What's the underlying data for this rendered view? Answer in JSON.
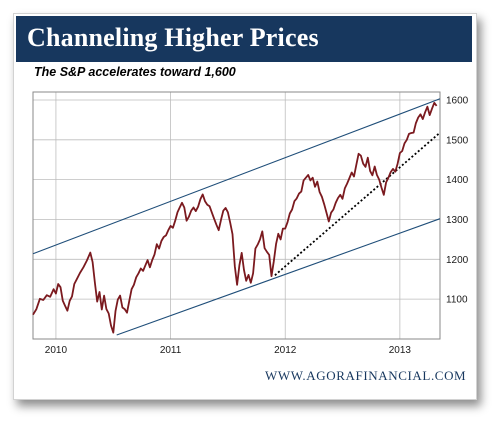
{
  "header": {
    "title": "Channeling Higher Prices",
    "subtitle": "The S&P accelerates toward 1,600"
  },
  "footer": {
    "source": "WWW.AGORAFINANCIAL.COM"
  },
  "colors": {
    "banner": "#17375e",
    "series": "#7b1a1f",
    "channel": "#1f4e79",
    "trend": "#000000"
  },
  "chart_data": {
    "type": "line",
    "title": "Channeling Higher Prices",
    "subtitle": "The S&P accelerates toward 1,600",
    "xlabel": "",
    "ylabel": "",
    "xlim": [
      2009.8,
      2013.35
    ],
    "ylim": [
      1000,
      1620
    ],
    "x_ticks": [
      2010,
      2011,
      2012,
      2013
    ],
    "x_tick_labels": [
      "2010",
      "2011",
      "2012",
      "2013"
    ],
    "y_ticks": [
      1100,
      1200,
      1300,
      1400,
      1500,
      1600
    ],
    "y_tick_labels": [
      "1100",
      "1200",
      "1300",
      "1400",
      "1500",
      "1600"
    ],
    "grid": true,
    "series": [
      {
        "values": [
          [
            2009.8,
            1061
          ],
          [
            2009.83,
            1075
          ],
          [
            2009.86,
            1101
          ],
          [
            2009.89,
            1098
          ],
          [
            2009.92,
            1110
          ],
          [
            2009.95,
            1106
          ],
          [
            2009.98,
            1125
          ],
          [
            2010.0,
            1114
          ],
          [
            2010.02,
            1138
          ],
          [
            2010.04,
            1130
          ],
          [
            2010.06,
            1096
          ],
          [
            2010.08,
            1083
          ],
          [
            2010.1,
            1071
          ],
          [
            2010.12,
            1096
          ],
          [
            2010.14,
            1107
          ],
          [
            2010.16,
            1138
          ],
          [
            2010.18,
            1149
          ],
          [
            2010.21,
            1166
          ],
          [
            2010.24,
            1180
          ],
          [
            2010.27,
            1197
          ],
          [
            2010.3,
            1217
          ],
          [
            2010.32,
            1193
          ],
          [
            2010.34,
            1141
          ],
          [
            2010.36,
            1094
          ],
          [
            2010.38,
            1118
          ],
          [
            2010.4,
            1074
          ],
          [
            2010.42,
            1109
          ],
          [
            2010.44,
            1075
          ],
          [
            2010.46,
            1064
          ],
          [
            2010.48,
            1034
          ],
          [
            2010.5,
            1016
          ],
          [
            2010.52,
            1070
          ],
          [
            2010.54,
            1099
          ],
          [
            2010.56,
            1109
          ],
          [
            2010.58,
            1079
          ],
          [
            2010.6,
            1075
          ],
          [
            2010.62,
            1066
          ],
          [
            2010.64,
            1096
          ],
          [
            2010.66,
            1125
          ],
          [
            2010.68,
            1136
          ],
          [
            2010.7,
            1155
          ],
          [
            2010.72,
            1165
          ],
          [
            2010.74,
            1177
          ],
          [
            2010.76,
            1171
          ],
          [
            2010.78,
            1185
          ],
          [
            2010.8,
            1198
          ],
          [
            2010.82,
            1180
          ],
          [
            2010.84,
            1198
          ],
          [
            2010.86,
            1212
          ],
          [
            2010.88,
            1238
          ],
          [
            2010.9,
            1227
          ],
          [
            2010.92,
            1246
          ],
          [
            2010.94,
            1256
          ],
          [
            2010.96,
            1260
          ],
          [
            2010.98,
            1273
          ],
          [
            2011.0,
            1284
          ],
          [
            2011.02,
            1279
          ],
          [
            2011.04,
            1297
          ],
          [
            2011.06,
            1318
          ],
          [
            2011.08,
            1330
          ],
          [
            2011.1,
            1342
          ],
          [
            2011.12,
            1330
          ],
          [
            2011.14,
            1297
          ],
          [
            2011.16,
            1307
          ],
          [
            2011.18,
            1322
          ],
          [
            2011.2,
            1330
          ],
          [
            2011.22,
            1321
          ],
          [
            2011.24,
            1332
          ],
          [
            2011.26,
            1351
          ],
          [
            2011.28,
            1363
          ],
          [
            2011.3,
            1346
          ],
          [
            2011.32,
            1337
          ],
          [
            2011.34,
            1333
          ],
          [
            2011.36,
            1317
          ],
          [
            2011.38,
            1302
          ],
          [
            2011.4,
            1287
          ],
          [
            2011.42,
            1273
          ],
          [
            2011.44,
            1299
          ],
          [
            2011.46,
            1322
          ],
          [
            2011.48,
            1329
          ],
          [
            2011.5,
            1318
          ],
          [
            2011.52,
            1292
          ],
          [
            2011.54,
            1263
          ],
          [
            2011.56,
            1183
          ],
          [
            2011.58,
            1136
          ],
          [
            2011.6,
            1185
          ],
          [
            2011.62,
            1216
          ],
          [
            2011.64,
            1173
          ],
          [
            2011.66,
            1146
          ],
          [
            2011.68,
            1161
          ],
          [
            2011.7,
            1141
          ],
          [
            2011.72,
            1165
          ],
          [
            2011.74,
            1227
          ],
          [
            2011.76,
            1237
          ],
          [
            2011.78,
            1250
          ],
          [
            2011.8,
            1270
          ],
          [
            2011.82,
            1228
          ],
          [
            2011.84,
            1219
          ],
          [
            2011.86,
            1211
          ],
          [
            2011.88,
            1158
          ],
          [
            2011.9,
            1195
          ],
          [
            2011.92,
            1239
          ],
          [
            2011.94,
            1264
          ],
          [
            2011.96,
            1250
          ],
          [
            2011.98,
            1277
          ],
          [
            2012.0,
            1277
          ],
          [
            2012.02,
            1293
          ],
          [
            2012.04,
            1315
          ],
          [
            2012.06,
            1325
          ],
          [
            2012.08,
            1346
          ],
          [
            2012.1,
            1353
          ],
          [
            2012.12,
            1365
          ],
          [
            2012.14,
            1370
          ],
          [
            2012.16,
            1398
          ],
          [
            2012.18,
            1405
          ],
          [
            2012.2,
            1412
          ],
          [
            2012.22,
            1398
          ],
          [
            2012.24,
            1405
          ],
          [
            2012.26,
            1382
          ],
          [
            2012.28,
            1395
          ],
          [
            2012.3,
            1369
          ],
          [
            2012.32,
            1357
          ],
          [
            2012.34,
            1338
          ],
          [
            2012.36,
            1317
          ],
          [
            2012.38,
            1295
          ],
          [
            2012.4,
            1317
          ],
          [
            2012.42,
            1325
          ],
          [
            2012.44,
            1342
          ],
          [
            2012.46,
            1354
          ],
          [
            2012.48,
            1362
          ],
          [
            2012.5,
            1352
          ],
          [
            2012.52,
            1378
          ],
          [
            2012.54,
            1390
          ],
          [
            2012.56,
            1404
          ],
          [
            2012.58,
            1418
          ],
          [
            2012.6,
            1408
          ],
          [
            2012.62,
            1437
          ],
          [
            2012.64,
            1465
          ],
          [
            2012.66,
            1460
          ],
          [
            2012.68,
            1440
          ],
          [
            2012.7,
            1432
          ],
          [
            2012.72,
            1455
          ],
          [
            2012.74,
            1422
          ],
          [
            2012.76,
            1411
          ],
          [
            2012.78,
            1433
          ],
          [
            2012.8,
            1412
          ],
          [
            2012.82,
            1400
          ],
          [
            2012.84,
            1380
          ],
          [
            2012.86,
            1362
          ],
          [
            2012.88,
            1393
          ],
          [
            2012.9,
            1405
          ],
          [
            2012.92,
            1419
          ],
          [
            2012.94,
            1427
          ],
          [
            2012.96,
            1420
          ],
          [
            2012.98,
            1440
          ],
          [
            2013.0,
            1467
          ],
          [
            2013.02,
            1472
          ],
          [
            2013.04,
            1491
          ],
          [
            2013.06,
            1500
          ],
          [
            2013.08,
            1515
          ],
          [
            2013.1,
            1517
          ],
          [
            2013.12,
            1518
          ],
          [
            2013.14,
            1542
          ],
          [
            2013.16,
            1556
          ],
          [
            2013.18,
            1564
          ],
          [
            2013.2,
            1552
          ],
          [
            2013.22,
            1569
          ],
          [
            2013.24,
            1583
          ],
          [
            2013.26,
            1562
          ],
          [
            2013.28,
            1578
          ],
          [
            2013.3,
            1593
          ],
          [
            2013.32,
            1585
          ]
        ]
      }
    ],
    "channel_upper": [
      [
        2009.8,
        1214
      ],
      [
        2013.35,
        1603
      ]
    ],
    "channel_lower": [
      [
        2010.53,
        1010
      ],
      [
        2013.35,
        1302
      ]
    ],
    "support_trend": [
      [
        2011.91,
        1160
      ],
      [
        2013.35,
        1518
      ]
    ]
  }
}
